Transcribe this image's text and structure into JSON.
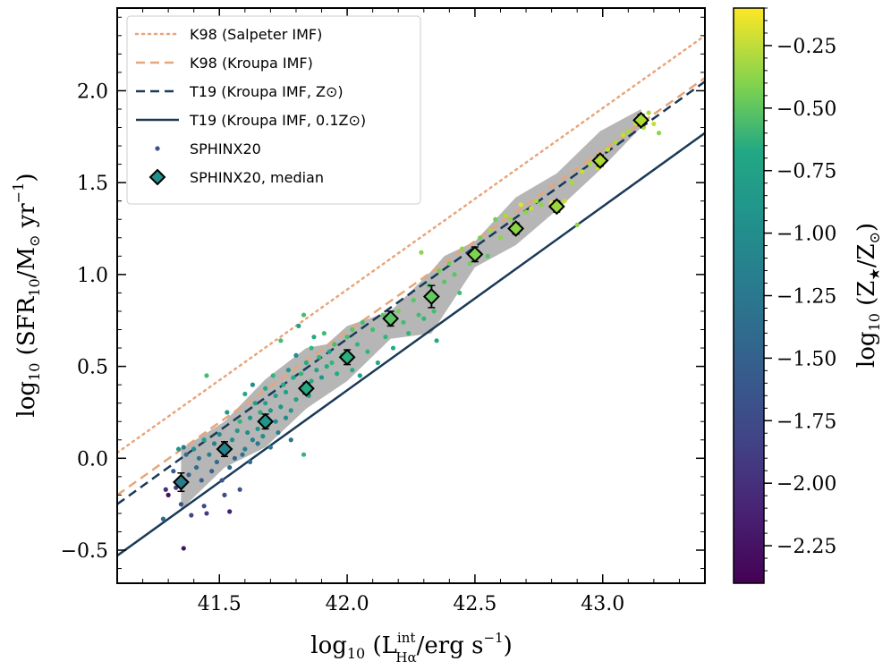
{
  "chart_data": {
    "type": "scatter",
    "xlabel": "log10 (L_Hα^int / erg s^-1)",
    "ylabel": "log10 (SFR10 / M⊙ yr^-1)",
    "colorbar_label": "log10 (Z★ / Z⊙)",
    "xlim": [
      41.1,
      43.4
    ],
    "ylim": [
      -0.68,
      2.45
    ],
    "x_ticks": [
      41.5,
      42.0,
      42.5,
      43.0
    ],
    "x_tick_labels": [
      "41.5",
      "42.0",
      "42.5",
      "43.0"
    ],
    "y_ticks": [
      -0.5,
      0.0,
      0.5,
      1.0,
      1.5,
      2.0
    ],
    "y_tick_labels": [
      "−0.5",
      "0.0",
      "0.5",
      "1.0",
      "1.5",
      "2.0"
    ],
    "colorbar_range": [
      -2.4,
      -0.1
    ],
    "colorbar_ticks": [
      -0.25,
      -0.5,
      -0.75,
      -1.0,
      -1.25,
      -1.5,
      -1.75,
      -2.0,
      -2.25
    ],
    "colorbar_tick_labels": [
      "−0.25",
      "−0.50",
      "−0.75",
      "−1.00",
      "−1.25",
      "−1.50",
      "−1.75",
      "−2.00",
      "−2.25"
    ],
    "lines": [
      {
        "name": "K98 (Salpeter IMF)",
        "x": [
          41.1,
          43.4
        ],
        "y": [
          0.03,
          2.3
        ],
        "color": "#e8a57a",
        "style": "dotted"
      },
      {
        "name": "K98 (Kroupa IMF)",
        "x": [
          41.1,
          43.4
        ],
        "y": [
          -0.2,
          2.07
        ],
        "color": "#e8a57a",
        "style": "dashed"
      },
      {
        "name": "T19 (Kroupa IMF, Z⊙)",
        "x": [
          41.1,
          43.4
        ],
        "y": [
          -0.25,
          2.05
        ],
        "color": "#1b3a57",
        "style": "dashed"
      },
      {
        "name": "T19 (Kroupa IMF, 0.1Z⊙)",
        "x": [
          41.1,
          43.4
        ],
        "y": [
          -0.53,
          1.77
        ],
        "color": "#1b3a57",
        "style": "solid"
      }
    ],
    "median": {
      "name": "SPHINX20, median",
      "x": [
        41.35,
        41.52,
        41.68,
        41.84,
        42.0,
        42.17,
        42.33,
        42.5,
        42.66,
        42.82,
        42.99,
        43.15
      ],
      "y": [
        -0.13,
        0.05,
        0.2,
        0.38,
        0.55,
        0.76,
        0.88,
        1.11,
        1.25,
        1.37,
        1.62,
        1.84
      ],
      "err": [
        0.05,
        0.04,
        0.04,
        0.03,
        0.04,
        0.04,
        0.06,
        0.04,
        0.03,
        0.03,
        0.03,
        0.03
      ],
      "z": [
        -1.45,
        -1.4,
        -1.2,
        -1.0,
        -0.95,
        -0.7,
        -0.65,
        -0.55,
        -0.5,
        -0.45,
        -0.4,
        -0.4
      ]
    },
    "band_lower": [
      [
        41.35,
        -0.28
      ],
      [
        41.52,
        -0.05
      ],
      [
        41.68,
        0.06
      ],
      [
        41.84,
        0.27
      ],
      [
        42.0,
        0.42
      ],
      [
        42.17,
        0.65
      ],
      [
        42.33,
        0.68
      ],
      [
        42.5,
        1.04
      ],
      [
        42.66,
        1.16
      ],
      [
        42.82,
        1.35
      ],
      [
        42.99,
        1.57
      ],
      [
        43.15,
        1.8
      ]
    ],
    "band_upper": [
      [
        43.15,
        1.9
      ],
      [
        42.99,
        1.78
      ],
      [
        42.82,
        1.55
      ],
      [
        42.66,
        1.42
      ],
      [
        42.5,
        1.18
      ],
      [
        42.38,
        1.1
      ],
      [
        42.33,
        1.02
      ],
      [
        42.17,
        0.8
      ],
      [
        42.0,
        0.72
      ],
      [
        41.92,
        0.62
      ],
      [
        41.84,
        0.6
      ],
      [
        41.68,
        0.43
      ],
      [
        41.52,
        0.2
      ],
      [
        41.35,
        0.05
      ]
    ],
    "scatter": {
      "name": "SPHINX20",
      "points": [
        [
          41.28,
          -0.33,
          -1.6
        ],
        [
          41.29,
          -0.17,
          -2.1
        ],
        [
          41.3,
          -0.2,
          -2.3
        ],
        [
          41.32,
          -0.07,
          -1.8
        ],
        [
          41.33,
          -0.16,
          -2.0
        ],
        [
          41.34,
          0.05,
          -1.2
        ],
        [
          41.35,
          -0.25,
          -1.8
        ],
        [
          41.36,
          -0.49,
          -2.3
        ],
        [
          41.36,
          0.06,
          -1.5
        ],
        [
          41.37,
          0.02,
          -1.6
        ],
        [
          41.38,
          -0.09,
          -1.7
        ],
        [
          41.39,
          -0.31,
          -1.9
        ],
        [
          41.4,
          0.05,
          -1.3
        ],
        [
          41.41,
          -0.05,
          -1.6
        ],
        [
          41.42,
          0.0,
          -1.5
        ],
        [
          41.43,
          -0.12,
          -1.7
        ],
        [
          41.44,
          0.1,
          -1.1
        ],
        [
          41.44,
          -0.26,
          -1.9
        ],
        [
          41.45,
          0.45,
          -0.8
        ],
        [
          41.45,
          -0.3,
          -2.0
        ],
        [
          41.46,
          0.02,
          -1.4
        ],
        [
          41.47,
          -0.07,
          -1.7
        ],
        [
          41.48,
          0.08,
          -1.4
        ],
        [
          41.49,
          -0.02,
          -1.6
        ],
        [
          41.5,
          0.13,
          -1.3
        ],
        [
          41.51,
          -0.12,
          -1.8
        ],
        [
          41.52,
          -0.2,
          -1.9
        ],
        [
          41.53,
          0.05,
          -1.5
        ],
        [
          41.53,
          0.25,
          -1.2
        ],
        [
          41.54,
          -0.05,
          -1.6
        ],
        [
          41.54,
          -0.29,
          -2.2
        ],
        [
          41.55,
          0.1,
          -1.3
        ],
        [
          41.56,
          0.0,
          -1.7
        ],
        [
          41.57,
          0.15,
          -1.2
        ],
        [
          41.58,
          0.2,
          -0.9
        ],
        [
          41.58,
          -0.17,
          -1.8
        ],
        [
          41.59,
          0.02,
          -1.5
        ],
        [
          41.6,
          0.05,
          -1.4
        ],
        [
          41.6,
          0.35,
          -1.0
        ],
        [
          41.61,
          0.14,
          -1.3
        ],
        [
          41.62,
          0.22,
          -1.2
        ],
        [
          41.62,
          -0.02,
          -1.6
        ],
        [
          41.63,
          0.1,
          -1.4
        ],
        [
          41.63,
          0.4,
          -1.3
        ],
        [
          41.64,
          0.3,
          -1.1
        ],
        [
          41.65,
          0.16,
          -1.2
        ],
        [
          41.65,
          0.08,
          -1.5
        ],
        [
          41.66,
          0.25,
          -1.0
        ],
        [
          41.67,
          0.12,
          -1.3
        ],
        [
          41.68,
          0.3,
          -1.1
        ],
        [
          41.68,
          0.38,
          -1.0
        ],
        [
          41.69,
          0.18,
          -1.2
        ],
        [
          41.7,
          0.26,
          -1.2
        ],
        [
          41.7,
          0.06,
          -1.5
        ],
        [
          41.71,
          0.45,
          -0.9
        ],
        [
          41.72,
          0.2,
          -1.3
        ],
        [
          41.72,
          0.34,
          -1.1
        ],
        [
          41.73,
          0.14,
          -1.4
        ],
        [
          41.74,
          0.28,
          -1.2
        ],
        [
          41.74,
          0.64,
          -0.8
        ],
        [
          41.75,
          0.4,
          -1.0
        ],
        [
          41.76,
          0.22,
          -1.3
        ],
        [
          41.76,
          0.36,
          -1.1
        ],
        [
          41.77,
          0.48,
          -1.2
        ],
        [
          41.78,
          0.26,
          -1.2
        ],
        [
          41.78,
          0.1,
          -1.5
        ],
        [
          41.79,
          0.44,
          -1.0
        ],
        [
          41.8,
          0.32,
          -1.1
        ],
        [
          41.8,
          0.56,
          -1.3
        ],
        [
          41.81,
          0.72,
          -1.1
        ],
        [
          41.82,
          0.46,
          -0.9
        ],
        [
          41.83,
          0.78,
          -0.8
        ],
        [
          41.83,
          0.02,
          -0.9
        ],
        [
          41.84,
          0.52,
          -1.0
        ],
        [
          41.85,
          0.34,
          -1.1
        ],
        [
          41.86,
          0.6,
          -0.9
        ],
        [
          41.86,
          0.42,
          -1.0
        ],
        [
          41.87,
          0.66,
          -1.0
        ],
        [
          41.88,
          0.48,
          -1.1
        ],
        [
          41.89,
          0.55,
          -0.9
        ],
        [
          41.9,
          0.44,
          -1.2
        ],
        [
          41.91,
          0.68,
          -0.8
        ],
        [
          41.92,
          0.5,
          -1.0
        ],
        [
          41.93,
          0.58,
          -1.1
        ],
        [
          41.94,
          0.52,
          -0.9
        ],
        [
          41.95,
          0.62,
          -0.8
        ],
        [
          41.96,
          0.46,
          -1.0
        ],
        [
          41.98,
          0.56,
          -0.9
        ],
        [
          42.0,
          0.66,
          -0.8
        ],
        [
          42.02,
          0.7,
          -0.7
        ],
        [
          42.02,
          0.48,
          -1.0
        ],
        [
          42.04,
          0.62,
          -0.9
        ],
        [
          42.05,
          0.45,
          -1.1
        ],
        [
          42.06,
          0.74,
          -0.8
        ],
        [
          42.08,
          0.58,
          -0.9
        ],
        [
          42.1,
          0.7,
          -0.8
        ],
        [
          42.12,
          0.52,
          -1.0
        ],
        [
          42.14,
          0.78,
          -0.7
        ],
        [
          42.15,
          0.66,
          -0.9
        ],
        [
          42.18,
          0.6,
          -1.0
        ],
        [
          42.2,
          0.8,
          -0.6
        ],
        [
          42.22,
          0.74,
          -0.8
        ],
        [
          42.24,
          0.68,
          -0.9
        ],
        [
          42.26,
          0.86,
          -0.7
        ],
        [
          42.28,
          0.78,
          -0.8
        ],
        [
          42.29,
          1.12,
          -0.5
        ],
        [
          42.3,
          0.76,
          -0.9
        ],
        [
          42.32,
          0.94,
          -0.7
        ],
        [
          42.34,
          0.8,
          -0.8
        ],
        [
          42.35,
          0.64,
          -1.0
        ],
        [
          42.36,
          1.02,
          -0.6
        ],
        [
          42.38,
          0.96,
          -0.7
        ],
        [
          42.4,
          1.06,
          -0.6
        ],
        [
          42.42,
          1.0,
          -0.7
        ],
        [
          42.44,
          0.9,
          -0.8
        ],
        [
          42.45,
          1.14,
          -0.5
        ],
        [
          42.48,
          1.06,
          -0.6
        ],
        [
          42.5,
          1.12,
          -0.5
        ],
        [
          42.52,
          1.2,
          -0.6
        ],
        [
          42.55,
          1.1,
          -0.7
        ],
        [
          42.56,
          1.24,
          -0.4
        ],
        [
          42.58,
          1.3,
          -0.6
        ],
        [
          42.6,
          1.2,
          -0.5
        ],
        [
          42.62,
          1.32,
          -0.4
        ],
        [
          42.64,
          1.3,
          -0.5
        ],
        [
          42.66,
          1.22,
          -0.6
        ],
        [
          42.68,
          1.38,
          -0.2
        ],
        [
          42.7,
          1.34,
          -0.5
        ],
        [
          42.72,
          1.36,
          -0.3
        ],
        [
          42.74,
          1.4,
          -0.4
        ],
        [
          42.76,
          1.38,
          -0.5
        ],
        [
          42.8,
          1.39,
          -0.2
        ],
        [
          42.85,
          1.4,
          -0.3
        ],
        [
          42.88,
          1.5,
          -0.4
        ],
        [
          42.9,
          1.27,
          -0.5
        ],
        [
          42.92,
          1.56,
          -0.3
        ],
        [
          42.95,
          1.6,
          -0.4
        ],
        [
          42.98,
          1.58,
          -0.3
        ],
        [
          43.0,
          1.64,
          -0.4
        ],
        [
          43.02,
          1.68,
          -0.3
        ],
        [
          43.05,
          1.72,
          -0.4
        ],
        [
          43.08,
          1.76,
          -0.3
        ],
        [
          43.1,
          1.78,
          -0.4
        ],
        [
          43.13,
          1.82,
          -0.3
        ],
        [
          43.16,
          1.8,
          -0.4
        ],
        [
          43.18,
          1.88,
          -0.4
        ],
        [
          43.2,
          1.82,
          -0.3
        ],
        [
          43.22,
          1.77,
          -0.5
        ]
      ]
    },
    "legend": {
      "position": "upper-left",
      "entries": [
        {
          "label": "K98 (Salpeter IMF)"
        },
        {
          "label": "K98 (Kroupa IMF)"
        },
        {
          "label": "T19 (Kroupa IMF, Z⊙)"
        },
        {
          "label": "T19 (Kroupa IMF, 0.1Z⊙)"
        },
        {
          "label": "SPHINX20"
        },
        {
          "label": "SPHINX20, median"
        }
      ]
    }
  }
}
